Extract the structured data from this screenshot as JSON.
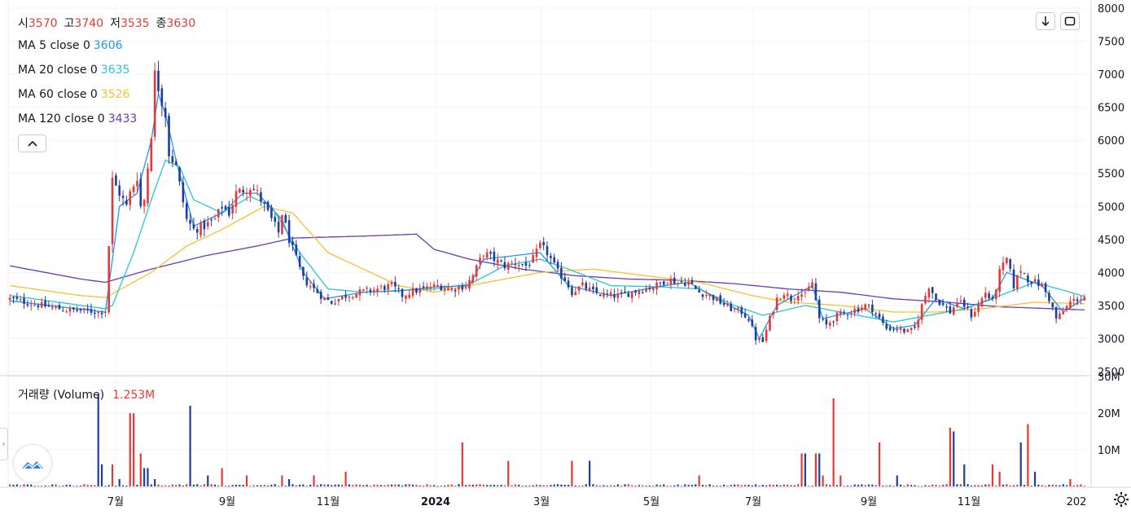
{
  "ohlc": {
    "open_label": "시",
    "open": "3570",
    "high_label": "고",
    "high": "3740",
    "low_label": "저",
    "low": "3535",
    "close_label": "종",
    "close": "3630"
  },
  "ma_legend": [
    {
      "label": "MA 5 close 0",
      "value": "3606",
      "color": "#2196f3"
    },
    {
      "label": "MA 20 close 0",
      "value": "3635",
      "color": "#26c6da"
    },
    {
      "label": "MA 60 close 0",
      "value": "3526",
      "color": "#f9c02e"
    },
    {
      "label": "MA 120 close 0",
      "value": "3433",
      "color": "#673ab7"
    }
  ],
  "volume_legend": {
    "label": "거래량 (Volume)",
    "value": "1.253M"
  },
  "buttons": {
    "download_icon": "arrow-down-icon",
    "fullscreen_icon": "fullscreen-icon",
    "collapse_icon": "chevron-up-icon",
    "settings_icon": "gear-icon"
  },
  "colors": {
    "up": "#e53935",
    "down": "#1e3f99",
    "ma5": "#2196f3",
    "ma20": "#26c6da",
    "ma60": "#f9c02e",
    "ma120": "#673ab7",
    "grid": "#f0f3fa"
  },
  "chart_data": {
    "type": "candlestick",
    "price_axis": {
      "ticks": [
        2500,
        3000,
        3500,
        4000,
        4500,
        5000,
        5500,
        6000,
        6500,
        7000,
        7500,
        8000
      ],
      "labels": [
        "2500",
        "3000",
        "3500",
        "4000",
        "4500",
        "5000",
        "5500",
        "6000",
        "6500",
        "7000",
        "7500",
        "8000"
      ],
      "range": [
        2450,
        8050
      ]
    },
    "volume_axis": {
      "ticks": [
        10,
        20,
        30
      ],
      "labels": [
        "10M",
        "20M",
        "30M"
      ],
      "range": [
        0,
        30
      ],
      "unit": "M"
    },
    "time_axis": {
      "labels": [
        "7월",
        "9월",
        "11월",
        "2024",
        "3월",
        "5월",
        "7월",
        "9월",
        "11월",
        "202"
      ]
    },
    "price_anchors": [
      [
        0,
        3600
      ],
      [
        6,
        3530
      ],
      [
        11,
        3480
      ],
      [
        16,
        3430
      ],
      [
        21,
        3420
      ],
      [
        25,
        3400
      ],
      [
        27,
        3420
      ],
      [
        29,
        5400
      ],
      [
        31,
        5200
      ],
      [
        33,
        5000
      ],
      [
        34,
        5200
      ],
      [
        36,
        5450
      ],
      [
        37,
        5000
      ],
      [
        38,
        5100
      ],
      [
        40,
        6100
      ],
      [
        41,
        7000
      ],
      [
        42,
        6800
      ],
      [
        43,
        6600
      ],
      [
        44,
        6400
      ],
      [
        45,
        5800
      ],
      [
        47,
        5600
      ],
      [
        50,
        4800
      ],
      [
        52,
        4650
      ],
      [
        55,
        4700
      ],
      [
        58,
        4800
      ],
      [
        60,
        5000
      ],
      [
        62,
        4900
      ],
      [
        64,
        5200
      ],
      [
        66,
        5250
      ],
      [
        68,
        5300
      ],
      [
        70,
        5200
      ],
      [
        72,
        5000
      ],
      [
        74,
        4800
      ],
      [
        76,
        4600
      ],
      [
        77,
        4900
      ],
      [
        79,
        4500
      ],
      [
        81,
        4200
      ],
      [
        83,
        3900
      ],
      [
        85,
        3800
      ],
      [
        87,
        3700
      ],
      [
        89,
        3600
      ],
      [
        91,
        3550
      ],
      [
        95,
        3650
      ],
      [
        99,
        3700
      ],
      [
        104,
        3750
      ],
      [
        108,
        3800
      ],
      [
        111,
        3650
      ],
      [
        113,
        3700
      ],
      [
        117,
        3750
      ],
      [
        121,
        3800
      ],
      [
        125,
        3750
      ],
      [
        129,
        3800
      ],
      [
        131,
        3950
      ],
      [
        134,
        4300
      ],
      [
        137,
        4200
      ],
      [
        140,
        4100
      ],
      [
        143,
        4150
      ],
      [
        146,
        4100
      ],
      [
        148,
        4200
      ],
      [
        150,
        4400
      ],
      [
        152,
        4300
      ],
      [
        155,
        4000
      ],
      [
        157,
        3900
      ],
      [
        159,
        3700
      ],
      [
        162,
        3800
      ],
      [
        165,
        3700
      ],
      [
        169,
        3650
      ],
      [
        173,
        3650
      ],
      [
        176,
        3700
      ],
      [
        179,
        3750
      ],
      [
        183,
        3800
      ],
      [
        186,
        3900
      ],
      [
        189,
        3850
      ],
      [
        192,
        3850
      ],
      [
        195,
        3700
      ],
      [
        198,
        3650
      ],
      [
        201,
        3550
      ],
      [
        204,
        3450
      ],
      [
        207,
        3400
      ],
      [
        209,
        3300
      ],
      [
        211,
        3000
      ],
      [
        213,
        2950
      ],
      [
        215,
        3300
      ],
      [
        217,
        3600
      ],
      [
        219,
        3700
      ],
      [
        221,
        3600
      ],
      [
        223,
        3700
      ],
      [
        225,
        3650
      ],
      [
        227,
        3850
      ],
      [
        229,
        3300
      ],
      [
        231,
        3200
      ],
      [
        234,
        3350
      ],
      [
        237,
        3400
      ],
      [
        240,
        3450
      ],
      [
        242,
        3500
      ],
      [
        244,
        3450
      ],
      [
        246,
        3300
      ],
      [
        248,
        3150
      ],
      [
        251,
        3150
      ],
      [
        254,
        3100
      ],
      [
        256,
        3150
      ],
      [
        258,
        3500
      ],
      [
        260,
        3800
      ],
      [
        262,
        3600
      ],
      [
        264,
        3500
      ],
      [
        266,
        3400
      ],
      [
        268,
        3550
      ],
      [
        270,
        3500
      ],
      [
        272,
        3350
      ],
      [
        274,
        3500
      ],
      [
        276,
        3700
      ],
      [
        278,
        3550
      ],
      [
        280,
        4000
      ],
      [
        282,
        4200
      ],
      [
        284,
        3800
      ],
      [
        286,
        4050
      ],
      [
        288,
        3900
      ],
      [
        290,
        3850
      ],
      [
        292,
        3800
      ],
      [
        294,
        3600
      ],
      [
        296,
        3300
      ],
      [
        298,
        3400
      ],
      [
        300,
        3550
      ],
      [
        302,
        3600
      ],
      [
        304,
        3630
      ]
    ],
    "ma_anchors": {
      "ma5": [
        [
          0,
          3570
        ],
        [
          27,
          3400
        ],
        [
          29,
          4200
        ],
        [
          31,
          5000
        ],
        [
          36,
          5200
        ],
        [
          40,
          6000
        ],
        [
          42,
          6700
        ],
        [
          44,
          6400
        ],
        [
          47,
          5700
        ],
        [
          52,
          4700
        ],
        [
          60,
          4900
        ],
        [
          66,
          5200
        ],
        [
          70,
          5200
        ],
        [
          77,
          4800
        ],
        [
          83,
          4000
        ],
        [
          89,
          3600
        ],
        [
          100,
          3700
        ],
        [
          110,
          3720
        ],
        [
          120,
          3780
        ],
        [
          130,
          3800
        ],
        [
          134,
          4200
        ],
        [
          150,
          4300
        ],
        [
          158,
          3800
        ],
        [
          170,
          3650
        ],
        [
          185,
          3800
        ],
        [
          192,
          3850
        ],
        [
          200,
          3600
        ],
        [
          209,
          3350
        ],
        [
          212,
          3000
        ],
        [
          217,
          3500
        ],
        [
          227,
          3800
        ],
        [
          230,
          3300
        ],
        [
          242,
          3450
        ],
        [
          250,
          3150
        ],
        [
          256,
          3200
        ],
        [
          262,
          3600
        ],
        [
          270,
          3450
        ],
        [
          278,
          3600
        ],
        [
          282,
          4000
        ],
        [
          292,
          3800
        ],
        [
          298,
          3400
        ],
        [
          304,
          3606
        ]
      ],
      "ma20": [
        [
          0,
          3650
        ],
        [
          27,
          3450
        ],
        [
          29,
          3500
        ],
        [
          35,
          4300
        ],
        [
          40,
          5100
        ],
        [
          44,
          5700
        ],
        [
          48,
          5600
        ],
        [
          52,
          5100
        ],
        [
          60,
          4900
        ],
        [
          68,
          5150
        ],
        [
          74,
          5000
        ],
        [
          82,
          4300
        ],
        [
          90,
          3750
        ],
        [
          100,
          3700
        ],
        [
          120,
          3750
        ],
        [
          130,
          3820
        ],
        [
          140,
          4100
        ],
        [
          150,
          4200
        ],
        [
          158,
          4050
        ],
        [
          170,
          3800
        ],
        [
          185,
          3780
        ],
        [
          195,
          3750
        ],
        [
          205,
          3500
        ],
        [
          213,
          3350
        ],
        [
          225,
          3500
        ],
        [
          235,
          3400
        ],
        [
          250,
          3250
        ],
        [
          260,
          3350
        ],
        [
          270,
          3450
        ],
        [
          280,
          3650
        ],
        [
          290,
          3850
        ],
        [
          300,
          3700
        ],
        [
          304,
          3635
        ]
      ],
      "ma60": [
        [
          0,
          3800
        ],
        [
          20,
          3650
        ],
        [
          27,
          3620
        ],
        [
          40,
          4000
        ],
        [
          50,
          4400
        ],
        [
          60,
          4650
        ],
        [
          72,
          5000
        ],
        [
          80,
          4900
        ],
        [
          90,
          4300
        ],
        [
          100,
          4050
        ],
        [
          110,
          3800
        ],
        [
          120,
          3700
        ],
        [
          135,
          3850
        ],
        [
          150,
          4000
        ],
        [
          165,
          4050
        ],
        [
          180,
          3950
        ],
        [
          195,
          3850
        ],
        [
          210,
          3650
        ],
        [
          220,
          3550
        ],
        [
          235,
          3500
        ],
        [
          250,
          3400
        ],
        [
          262,
          3400
        ],
        [
          275,
          3450
        ],
        [
          290,
          3550
        ],
        [
          304,
          3526
        ]
      ],
      "ma120": [
        [
          0,
          4100
        ],
        [
          20,
          3900
        ],
        [
          27,
          3850
        ],
        [
          40,
          4050
        ],
        [
          55,
          4250
        ],
        [
          70,
          4400
        ],
        [
          80,
          4520
        ],
        [
          100,
          4550
        ],
        [
          115,
          4580
        ],
        [
          120,
          4350
        ],
        [
          130,
          4200
        ],
        [
          145,
          4050
        ],
        [
          160,
          3950
        ],
        [
          175,
          3900
        ],
        [
          190,
          3880
        ],
        [
          205,
          3830
        ],
        [
          220,
          3750
        ],
        [
          235,
          3700
        ],
        [
          250,
          3600
        ],
        [
          265,
          3550
        ],
        [
          280,
          3480
        ],
        [
          304,
          3433
        ]
      ]
    },
    "volume_spikes": [
      [
        25,
        25,
        "down"
      ],
      [
        26,
        6,
        "down"
      ],
      [
        29,
        6,
        "up"
      ],
      [
        31,
        2,
        "down"
      ],
      [
        34,
        20,
        "up"
      ],
      [
        35,
        20,
        "up"
      ],
      [
        37,
        9,
        "up"
      ],
      [
        38,
        5,
        "down"
      ],
      [
        39,
        5,
        "down"
      ],
      [
        41,
        2,
        "down"
      ],
      [
        51,
        22,
        "down"
      ],
      [
        56,
        3,
        "down"
      ],
      [
        60,
        5,
        "up"
      ],
      [
        67,
        3,
        "up"
      ],
      [
        77,
        3,
        "up"
      ],
      [
        79,
        2,
        "down"
      ],
      [
        86,
        3,
        "up"
      ],
      [
        95,
        4,
        "up"
      ],
      [
        128,
        12,
        "up"
      ],
      [
        141,
        7,
        "up"
      ],
      [
        159,
        7,
        "up"
      ],
      [
        164,
        7,
        "down"
      ],
      [
        195,
        3,
        "up"
      ],
      [
        224,
        9,
        "up"
      ],
      [
        225,
        9,
        "down"
      ],
      [
        228,
        9,
        "up"
      ],
      [
        229,
        9,
        "down"
      ],
      [
        230,
        3,
        "up"
      ],
      [
        233,
        24,
        "up"
      ],
      [
        235,
        3,
        "up"
      ],
      [
        246,
        12,
        "up"
      ],
      [
        251,
        3,
        "down"
      ],
      [
        266,
        16,
        "up"
      ],
      [
        267,
        15,
        "down"
      ],
      [
        270,
        6,
        "down"
      ],
      [
        278,
        6,
        "up"
      ],
      [
        280,
        4,
        "up"
      ],
      [
        286,
        12,
        "down"
      ],
      [
        288,
        17,
        "up"
      ],
      [
        290,
        4,
        "down"
      ],
      [
        300,
        2,
        "up"
      ]
    ],
    "volume_base": 0.35
  }
}
